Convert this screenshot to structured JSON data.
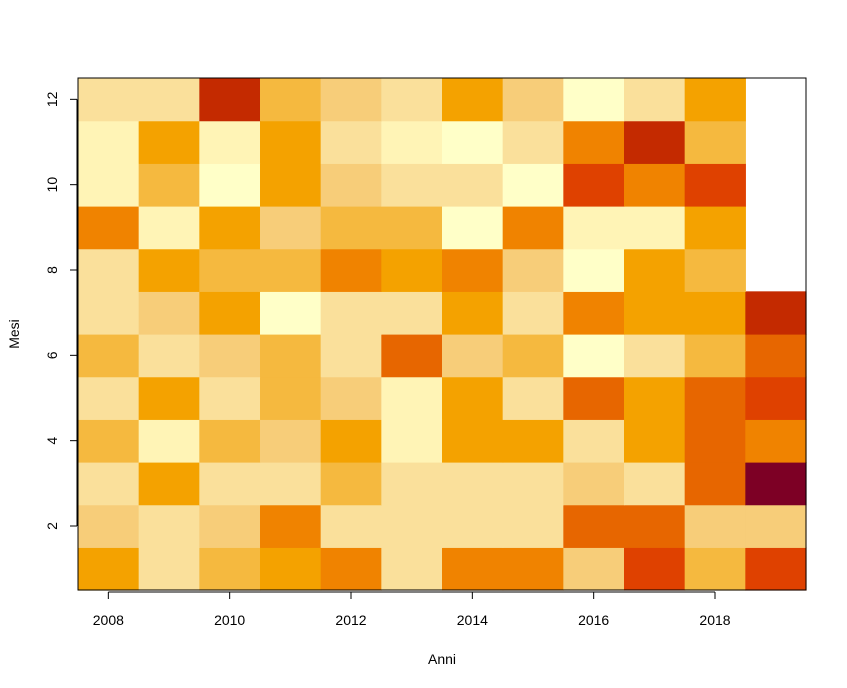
{
  "chart_data": {
    "type": "heatmap",
    "title": "",
    "xlabel": "Anni",
    "ylabel": "Mesi",
    "x": [
      2008,
      2009,
      2010,
      2011,
      2012,
      2013,
      2014,
      2015,
      2016,
      2017,
      2018,
      2019
    ],
    "y": [
      1,
      2,
      3,
      4,
      5,
      6,
      7,
      8,
      9,
      10,
      11,
      12
    ],
    "xlim": [
      2007.5,
      2019.5
    ],
    "ylim": [
      0.5,
      12.5
    ],
    "x_ticks": [
      "2008",
      "2010",
      "2012",
      "2014",
      "2016",
      "2018"
    ],
    "y_ticks": [
      "2",
      "4",
      "6",
      "8",
      "10",
      "12"
    ],
    "palette": [
      "#FFFFC8",
      "#FFF4B6",
      "#FAE09B",
      "#F7CD79",
      "#F5B93F",
      "#F4A200",
      "#F08300",
      "#E76600",
      "#DF4100",
      "#C42A00",
      "#7D0025"
    ],
    "values_note_scale": "0 = lightest, 10 = darkest",
    "values": [
      [
        5,
        2,
        4,
        5,
        6,
        2,
        6,
        6,
        3,
        8,
        4,
        8
      ],
      [
        3,
        2,
        3,
        6,
        2,
        2,
        2,
        2,
        7,
        7,
        3,
        3
      ],
      [
        2,
        5,
        2,
        2,
        4,
        2,
        2,
        2,
        3,
        2,
        7,
        10
      ],
      [
        4,
        1,
        4,
        3,
        5,
        1,
        5,
        5,
        2,
        5,
        7,
        6
      ],
      [
        2,
        5,
        2,
        4,
        3,
        1,
        5,
        2,
        7,
        5,
        7,
        8
      ],
      [
        4,
        2,
        3,
        4,
        2,
        7,
        3,
        4,
        0,
        2,
        4,
        7
      ],
      [
        2,
        3,
        5,
        0,
        2,
        2,
        5,
        2,
        6,
        5,
        5,
        9
      ],
      [
        2,
        5,
        4,
        4,
        6,
        5,
        6,
        3,
        0,
        5,
        4,
        null
      ],
      [
        6,
        1,
        5,
        3,
        4,
        4,
        0,
        6,
        1,
        1,
        5,
        null
      ],
      [
        1,
        4,
        0,
        5,
        3,
        2,
        2,
        0,
        8,
        6,
        8,
        null
      ],
      [
        1,
        5,
        1,
        5,
        2,
        1,
        0,
        2,
        6,
        9,
        4,
        null
      ],
      [
        2,
        2,
        9,
        4,
        3,
        2,
        5,
        3,
        0,
        2,
        5,
        null
      ]
    ],
    "grid": false,
    "legend": "none"
  }
}
